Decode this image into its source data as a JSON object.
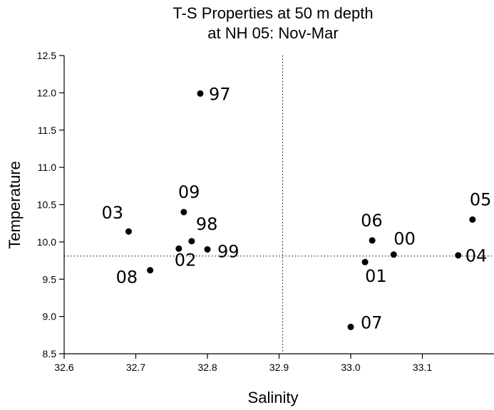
{
  "chart_data": {
    "type": "scatter",
    "title": "T-S Properties at 50 m depth",
    "subtitle": "at NH 05: Nov-Mar",
    "xlabel": "Salinity",
    "ylabel": "Temperature",
    "xlim": [
      32.6,
      33.2
    ],
    "ylim": [
      8.5,
      12.5
    ],
    "xticks": [
      "32.6",
      "32.7",
      "32.8",
      "32.9",
      "33.0",
      "33.1"
    ],
    "yticks": [
      "8.5",
      "9.0",
      "9.5",
      "10.0",
      "10.5",
      "11.0",
      "11.5",
      "12.0",
      "12.5"
    ],
    "grid": false,
    "reference_lines": {
      "x": 32.905,
      "y": 9.81
    },
    "marker_color": "#000000",
    "points": [
      {
        "label": "97",
        "x": 32.79,
        "y": 11.99
      },
      {
        "label": "03",
        "x": 32.69,
        "y": 10.14
      },
      {
        "label": "09",
        "x": 32.767,
        "y": 10.4
      },
      {
        "label": "98",
        "x": 32.778,
        "y": 10.01
      },
      {
        "label": "02",
        "x": 32.76,
        "y": 9.91
      },
      {
        "label": "99",
        "x": 32.8,
        "y": 9.9
      },
      {
        "label": "08",
        "x": 32.72,
        "y": 9.62
      },
      {
        "label": "06",
        "x": 33.03,
        "y": 10.02
      },
      {
        "label": "00",
        "x": 33.06,
        "y": 9.83
      },
      {
        "label": "01",
        "x": 33.02,
        "y": 9.73
      },
      {
        "label": "07",
        "x": 33.0,
        "y": 8.86
      },
      {
        "label": "05",
        "x": 33.17,
        "y": 10.3
      },
      {
        "label": "04",
        "x": 33.15,
        "y": 9.82
      }
    ]
  }
}
